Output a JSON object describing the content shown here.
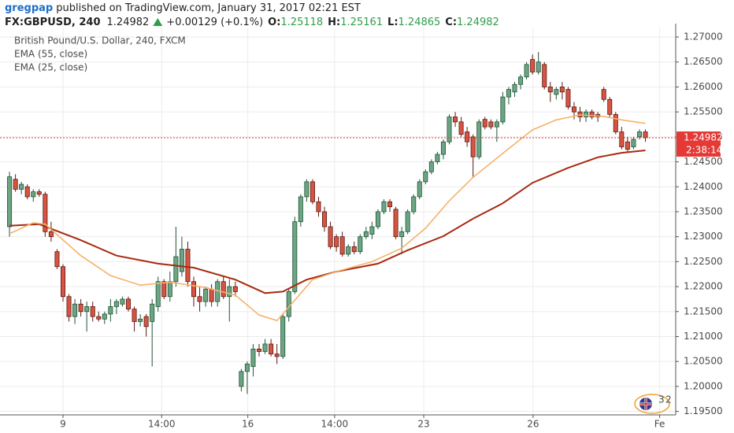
{
  "header": {
    "author": "gregpap",
    "published": "published on TradingView.com, January 31, 2017 02:21 EST",
    "symbol": "FX:GBPUSD, 240",
    "price": "1.24982",
    "change": "+0.00129 (+0.1%)",
    "open_label": "O:",
    "open": "1.25118",
    "high_label": "H:",
    "high": "1.25161",
    "low_label": "L:",
    "low": "1.24865",
    "close_label": "C:",
    "close": "1.24982"
  },
  "chart_data": {
    "type": "candlestick",
    "title": "British Pound/U.S. Dollar, 240, FXCM",
    "up_color": "#6ba583",
    "down_color": "#d75442",
    "ohlc": [
      [
        1.232,
        1.243,
        1.23,
        1.242
      ],
      [
        1.2415,
        1.2425,
        1.239,
        1.2395
      ],
      [
        1.2395,
        1.241,
        1.2385,
        1.2405
      ],
      [
        1.24,
        1.2405,
        1.2375,
        1.238
      ],
      [
        1.238,
        1.2395,
        1.237,
        1.239
      ],
      [
        1.239,
        1.2395,
        1.238,
        1.2385
      ],
      [
        1.2385,
        1.239,
        1.23,
        1.231
      ],
      [
        1.231,
        1.233,
        1.229,
        1.23
      ],
      [
        1.227,
        1.2275,
        1.2235,
        1.224
      ],
      [
        1.224,
        1.2245,
        1.217,
        1.218
      ],
      [
        1.218,
        1.2185,
        1.213,
        1.214
      ],
      [
        1.214,
        1.2175,
        1.2125,
        1.2165
      ],
      [
        1.2165,
        1.2175,
        1.214,
        1.215
      ],
      [
        1.215,
        1.217,
        1.211,
        1.216
      ],
      [
        1.216,
        1.217,
        1.213,
        1.214
      ],
      [
        1.214,
        1.215,
        1.213,
        1.2135
      ],
      [
        1.2135,
        1.215,
        1.2125,
        1.2145
      ],
      [
        1.2145,
        1.2175,
        1.213,
        1.216
      ],
      [
        1.216,
        1.2175,
        1.2145,
        1.217
      ],
      [
        1.2165,
        1.218,
        1.216,
        1.2175
      ],
      [
        1.2175,
        1.218,
        1.215,
        1.2155
      ],
      [
        1.2155,
        1.216,
        1.211,
        1.213
      ],
      [
        1.213,
        1.2145,
        1.212,
        1.2135
      ],
      [
        1.214,
        1.2145,
        1.21,
        1.212
      ],
      [
        1.213,
        1.2175,
        1.204,
        1.2165
      ],
      [
        1.216,
        1.222,
        1.215,
        1.221
      ],
      [
        1.221,
        1.2215,
        1.2175,
        1.218
      ],
      [
        1.218,
        1.223,
        1.217,
        1.221
      ],
      [
        1.221,
        1.232,
        1.22,
        1.226
      ],
      [
        1.223,
        1.23,
        1.222,
        1.2275
      ],
      [
        1.2275,
        1.229,
        1.22,
        1.221
      ],
      [
        1.221,
        1.222,
        1.216,
        1.218
      ],
      [
        1.218,
        1.22,
        1.215,
        1.217
      ],
      [
        1.217,
        1.22,
        1.216,
        1.2195
      ],
      [
        1.2195,
        1.2205,
        1.216,
        1.217
      ],
      [
        1.217,
        1.2215,
        1.216,
        1.221
      ],
      [
        1.221,
        1.222,
        1.2175,
        1.218
      ],
      [
        1.218,
        1.2215,
        1.213,
        1.22
      ],
      [
        1.22,
        1.221,
        1.218,
        1.219
      ],
      [
        1.2,
        1.2035,
        1.199,
        1.203
      ],
      [
        1.203,
        1.205,
        1.1985,
        1.2045
      ],
      [
        1.204,
        1.2085,
        1.202,
        1.2075
      ],
      [
        1.2075,
        1.2085,
        1.206,
        1.207
      ],
      [
        1.207,
        1.2095,
        1.2065,
        1.2085
      ],
      [
        1.2085,
        1.2095,
        1.206,
        1.2065
      ],
      [
        1.2065,
        1.2085,
        1.2045,
        1.206
      ],
      [
        1.206,
        1.2145,
        1.2055,
        1.214
      ],
      [
        1.214,
        1.2195,
        1.213,
        1.219
      ],
      [
        1.219,
        1.234,
        1.2185,
        1.233
      ],
      [
        1.233,
        1.2385,
        1.232,
        1.238
      ],
      [
        1.238,
        1.2415,
        1.237,
        1.241
      ],
      [
        1.241,
        1.2415,
        1.2365,
        1.237
      ],
      [
        1.237,
        1.238,
        1.234,
        1.235
      ],
      [
        1.235,
        1.236,
        1.231,
        1.232
      ],
      [
        1.232,
        1.233,
        1.2275,
        1.228
      ],
      [
        1.23,
        1.2305,
        1.227,
        1.228
      ],
      [
        1.23,
        1.231,
        1.226,
        1.2265
      ],
      [
        1.2265,
        1.2285,
        1.226,
        1.228
      ],
      [
        1.228,
        1.229,
        1.2265,
        1.227
      ],
      [
        1.227,
        1.2305,
        1.2265,
        1.23
      ],
      [
        1.23,
        1.232,
        1.2295,
        1.231
      ],
      [
        1.2305,
        1.233,
        1.2295,
        1.232
      ],
      [
        1.232,
        1.2355,
        1.2315,
        1.235
      ],
      [
        1.235,
        1.2375,
        1.2345,
        1.237
      ],
      [
        1.237,
        1.2375,
        1.235,
        1.236
      ],
      [
        1.2355,
        1.236,
        1.2295,
        1.23
      ],
      [
        1.23,
        1.232,
        1.2265,
        1.231
      ],
      [
        1.231,
        1.2355,
        1.2305,
        1.235
      ],
      [
        1.235,
        1.2385,
        1.2345,
        1.238
      ],
      [
        1.238,
        1.2415,
        1.2375,
        1.241
      ],
      [
        1.241,
        1.2435,
        1.2405,
        1.243
      ],
      [
        1.243,
        1.2455,
        1.2425,
        1.245
      ],
      [
        1.245,
        1.247,
        1.2445,
        1.2465
      ],
      [
        1.2465,
        1.2495,
        1.2455,
        1.249
      ],
      [
        1.249,
        1.2545,
        1.2485,
        1.254
      ],
      [
        1.254,
        1.255,
        1.252,
        1.253
      ],
      [
        1.253,
        1.254,
        1.25,
        1.2505
      ],
      [
        1.251,
        1.252,
        1.248,
        1.249
      ],
      [
        1.25,
        1.2505,
        1.242,
        1.246
      ],
      [
        1.246,
        1.2535,
        1.2455,
        1.253
      ],
      [
        1.2535,
        1.254,
        1.2515,
        1.252
      ],
      [
        1.253,
        1.2535,
        1.2515,
        1.252
      ],
      [
        1.252,
        1.2535,
        1.249,
        1.253
      ],
      [
        1.253,
        1.259,
        1.2525,
        1.258
      ],
      [
        1.258,
        1.26,
        1.2565,
        1.2595
      ],
      [
        1.259,
        1.261,
        1.258,
        1.2605
      ],
      [
        1.2605,
        1.2625,
        1.2595,
        1.262
      ],
      [
        1.262,
        1.265,
        1.2615,
        1.2645
      ],
      [
        1.2655,
        1.2665,
        1.2625,
        1.263
      ],
      [
        1.263,
        1.267,
        1.2625,
        1.265
      ],
      [
        1.2645,
        1.265,
        1.2595,
        1.26
      ],
      [
        1.26,
        1.261,
        1.257,
        1.259
      ],
      [
        1.2585,
        1.26,
        1.2575,
        1.2595
      ],
      [
        1.26,
        1.261,
        1.2575,
        1.259
      ],
      [
        1.2595,
        1.26,
        1.2555,
        1.256
      ],
      [
        1.256,
        1.257,
        1.2535,
        1.255
      ],
      [
        1.255,
        1.256,
        1.253,
        1.254
      ],
      [
        1.254,
        1.2555,
        1.253,
        1.255
      ],
      [
        1.255,
        1.2555,
        1.2535,
        1.254
      ],
      [
        1.2545,
        1.255,
        1.253,
        1.254
      ],
      [
        1.2595,
        1.26,
        1.257,
        1.2575
      ],
      [
        1.2575,
        1.258,
        1.254,
        1.2545
      ],
      [
        1.2545,
        1.255,
        1.2505,
        1.251
      ],
      [
        1.251,
        1.252,
        1.2475,
        1.248
      ],
      [
        1.249,
        1.25,
        1.247,
        1.2475
      ],
      [
        1.248,
        1.25,
        1.2475,
        1.2495
      ],
      [
        1.25,
        1.2515,
        1.2495,
        1.251
      ],
      [
        1.251,
        1.2515,
        1.249,
        1.24982
      ]
    ],
    "series": [
      {
        "name": "EMA (55, close)",
        "color": "#a8290f",
        "x": [
          0,
          5,
          12,
          18,
          25,
          31,
          38,
          43,
          46,
          50,
          55,
          62,
          67,
          73,
          78,
          83,
          88,
          94,
          99,
          103,
          107
        ],
        "values": [
          1.2322,
          1.2325,
          1.2293,
          1.2262,
          1.2246,
          1.2238,
          1.2214,
          1.2187,
          1.219,
          1.2214,
          1.223,
          1.2246,
          1.2273,
          1.2301,
          1.2336,
          1.2367,
          1.2408,
          1.2438,
          1.2459,
          1.2468,
          1.2473
        ]
      },
      {
        "name": "EMA (25, close)",
        "color": "#f5b26b",
        "x": [
          0,
          4,
          6,
          12,
          17,
          22,
          27,
          33,
          38,
          42,
          45,
          47,
          51,
          55,
          61,
          66,
          70,
          74,
          78,
          83,
          88,
          92,
          96,
          100,
          103,
          107
        ],
        "values": [
          1.2306,
          1.2328,
          1.2325,
          1.2262,
          1.2222,
          1.2203,
          1.2209,
          1.2198,
          1.2183,
          1.2143,
          1.2132,
          1.2159,
          1.2214,
          1.223,
          1.225,
          1.2277,
          1.2317,
          1.2372,
          1.2419,
          1.2467,
          1.2514,
          1.2534,
          1.2544,
          1.2541,
          1.2534,
          1.2527
        ]
      }
    ],
    "last_price": 1.24982,
    "last_price_color": "#e53935",
    "countdown": "2:38:14",
    "xlim": [
      -1.6,
      112.1
    ],
    "ylim": [
      1.1943,
      1.2719
    ],
    "xticks": [
      {
        "value": 9,
        "label": "9"
      },
      {
        "value": 25.6,
        "label": "14:00"
      },
      {
        "value": 40.1,
        "label": "16"
      },
      {
        "value": 54.7,
        "label": "14:00"
      },
      {
        "value": 69.7,
        "label": "23"
      },
      {
        "value": 88.1,
        "label": "26"
      },
      {
        "value": 109.4,
        "label": "Fe"
      }
    ],
    "yticks": [
      {
        "value": 1.195,
        "label": "1.19500"
      },
      {
        "value": 1.2,
        "label": "1.20000"
      },
      {
        "value": 1.205,
        "label": "1.20500"
      },
      {
        "value": 1.21,
        "label": "1.21000"
      },
      {
        "value": 1.215,
        "label": "1.21500"
      },
      {
        "value": 1.22,
        "label": "1.22000"
      },
      {
        "value": 1.225,
        "label": "1.22500"
      },
      {
        "value": 1.23,
        "label": "1.23000"
      },
      {
        "value": 1.235,
        "label": "1.23500"
      },
      {
        "value": 1.24,
        "label": "1.24000"
      },
      {
        "value": 1.245,
        "label": "1.24500"
      },
      {
        "value": 1.25,
        "label": "1.25000"
      },
      {
        "value": 1.255,
        "label": "1.25500"
      },
      {
        "value": 1.26,
        "label": "1.26000"
      },
      {
        "value": 1.265,
        "label": "1.26500"
      },
      {
        "value": 1.27,
        "label": "1.27000"
      }
    ],
    "grid": true
  }
}
